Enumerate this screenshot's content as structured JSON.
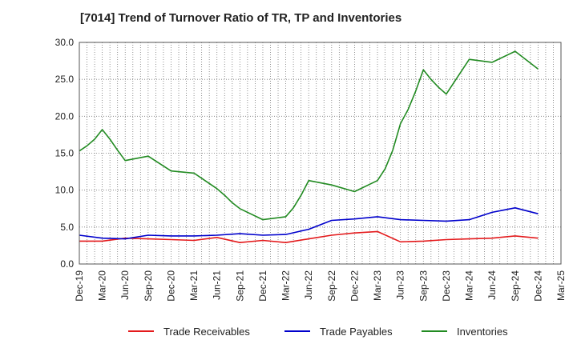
{
  "chart_data": {
    "type": "line",
    "title": "[7014]  Trend of Turnover Ratio of TR, TP and Inventories",
    "xlabel": "",
    "ylabel": "",
    "ylim": [
      0,
      30
    ],
    "yticks": [
      "0.0",
      "5.0",
      "10.0",
      "15.0",
      "20.0",
      "25.0",
      "30.0"
    ],
    "xticks": [
      "Dec-19",
      "Mar-20",
      "Jun-20",
      "Sep-20",
      "Dec-20",
      "Mar-21",
      "Jun-21",
      "Sep-21",
      "Dec-21",
      "Mar-22",
      "Jun-22",
      "Sep-22",
      "Dec-22",
      "Mar-23",
      "Jun-23",
      "Sep-23",
      "Dec-23",
      "Mar-24",
      "Jun-24",
      "Sep-24",
      "Dec-24",
      "Mar-25"
    ],
    "grid": true,
    "legend_position": "bottom",
    "series": [
      {
        "name": "Trade Receivables",
        "color": "#e41a1c",
        "x": [
          "Dec-19",
          "Mar-20",
          "Jun-20",
          "Sep-20",
          "Dec-20",
          "Mar-21",
          "Jun-21",
          "Sep-21",
          "Dec-21",
          "Mar-22",
          "Jun-22",
          "Sep-22",
          "Dec-22",
          "Mar-23",
          "Jun-23",
          "Sep-23",
          "Dec-23",
          "Mar-24",
          "Jun-24",
          "Sep-24",
          "Dec-24"
        ],
        "values": [
          3.1,
          3.1,
          3.5,
          3.4,
          3.3,
          3.2,
          3.6,
          2.9,
          3.2,
          2.9,
          3.4,
          3.9,
          4.2,
          4.4,
          3.0,
          3.1,
          3.3,
          3.4,
          3.5,
          3.8,
          3.5
        ]
      },
      {
        "name": "Trade Payables",
        "color": "#0000cc",
        "x": [
          "Dec-19",
          "Mar-20",
          "Jun-20",
          "Sep-20",
          "Dec-20",
          "Mar-21",
          "Jun-21",
          "Sep-21",
          "Dec-21",
          "Mar-22",
          "Jun-22",
          "Sep-22",
          "Dec-22",
          "Mar-23",
          "Jun-23",
          "Sep-23",
          "Dec-23",
          "Mar-24",
          "Jun-24",
          "Sep-24",
          "Dec-24"
        ],
        "values": [
          3.9,
          3.5,
          3.4,
          3.9,
          3.8,
          3.8,
          3.9,
          4.1,
          3.9,
          4.0,
          4.7,
          5.9,
          6.1,
          6.4,
          6.0,
          5.9,
          5.8,
          6.0,
          7.0,
          7.6,
          6.8
        ]
      },
      {
        "name": "Inventories",
        "color": "#228b22",
        "x": [
          "Dec-19",
          "Jan-20",
          "Feb-20",
          "Mar-20",
          "Apr-20",
          "May-20",
          "Jun-20",
          "Sep-20",
          "Dec-20",
          "Mar-21",
          "Jun-21",
          "Jul-21",
          "Aug-21",
          "Sep-21",
          "Dec-21",
          "Mar-22",
          "Apr-22",
          "May-22",
          "Jun-22",
          "Sep-22",
          "Dec-22",
          "Mar-23",
          "Apr-23",
          "May-23",
          "Jun-23",
          "Jul-23",
          "Aug-23",
          "Sep-23",
          "Oct-23",
          "Nov-23",
          "Dec-23",
          "Mar-24",
          "Jun-24",
          "Sep-24",
          "Dec-24"
        ],
        "values": [
          15.3,
          16.0,
          16.9,
          18.2,
          16.9,
          15.4,
          14.0,
          14.6,
          12.6,
          12.3,
          10.2,
          9.3,
          8.3,
          7.5,
          6.0,
          6.4,
          7.6,
          9.3,
          11.3,
          10.7,
          9.8,
          11.3,
          12.9,
          15.4,
          19.0,
          20.9,
          23.4,
          26.3,
          25.0,
          23.9,
          23.0,
          27.7,
          27.3,
          28.8,
          26.4
        ]
      }
    ]
  }
}
